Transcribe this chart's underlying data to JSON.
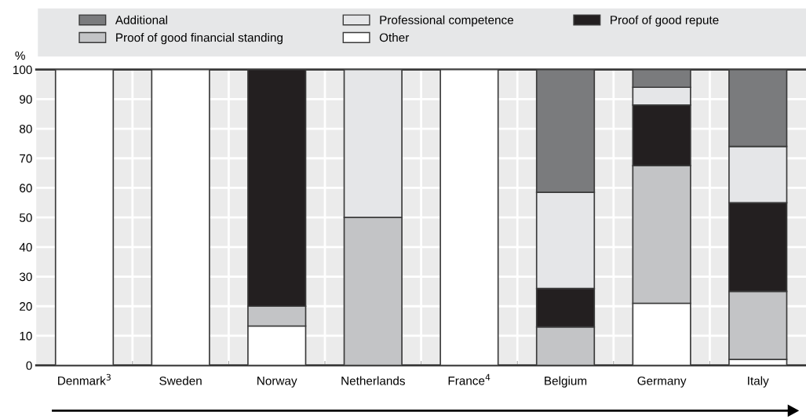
{
  "chart_data": {
    "type": "bar",
    "stacked": true,
    "ylabel": "%",
    "categories": [
      "Denmark$^{3}$",
      "Sweden",
      "Norway",
      "Netherlands",
      "France$^{4}$",
      "Belgium",
      "Germany",
      "Italy"
    ],
    "series": [
      {
        "name": "Other",
        "color": "#ffffff",
        "values": [
          100,
          100,
          13.3,
          null,
          100,
          null,
          21,
          2
        ]
      },
      {
        "name": "Proof of good financial standing",
        "color": "#c3c4c6",
        "values": [
          null,
          null,
          6.7,
          50,
          null,
          13,
          46.5,
          23
        ]
      },
      {
        "name": "Proof of good repute",
        "color": "#231f20",
        "values": [
          null,
          null,
          80,
          null,
          null,
          13,
          20.5,
          30
        ]
      },
      {
        "name": "Professional competence",
        "color": "#e5e6e8",
        "values": [
          null,
          null,
          null,
          50,
          null,
          32.5,
          6,
          19
        ]
      },
      {
        "name": "Additional",
        "color": "#7a7b7d",
        "values": [
          null,
          null,
          null,
          null,
          null,
          41.5,
          6,
          26
        ]
      }
    ],
    "ylim": [
      0,
      100
    ],
    "yticks": [
      0,
      10,
      20,
      30,
      40,
      50,
      60,
      70,
      80,
      90,
      100
    ],
    "grid": true,
    "legend": "top"
  }
}
